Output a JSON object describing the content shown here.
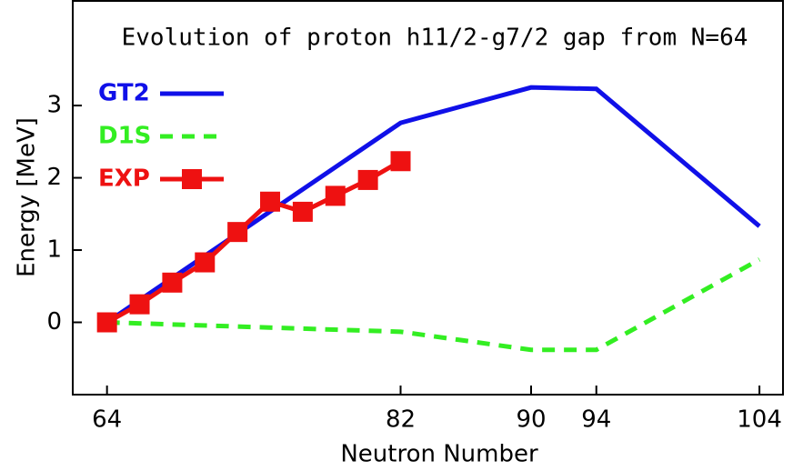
{
  "chart_data": {
    "type": "line",
    "title": "Evolution of proton h11/2-g7/2 gap from N=64",
    "xlabel": "Neutron Number",
    "ylabel": "Energy [MeV]",
    "xlim": [
      61.9,
      105.5
    ],
    "xticks": [
      64,
      82,
      90,
      94,
      104
    ],
    "ylim": [
      -1,
      4.46
    ],
    "yticks": [
      0,
      1,
      2,
      3
    ],
    "legend": "upper left",
    "series": [
      {
        "name": "GT2",
        "color": "#1010e8",
        "style": "solid",
        "marker": "none",
        "x": [
          64,
          82,
          90,
          94,
          104
        ],
        "values": [
          0,
          2.76,
          3.25,
          3.23,
          1.33
        ]
      },
      {
        "name": "D1S",
        "color": "#33ee22",
        "style": "dashed",
        "marker": "none",
        "x": [
          64,
          82,
          90,
          94,
          104
        ],
        "values": [
          0,
          -0.13,
          -0.38,
          -0.38,
          0.87
        ]
      },
      {
        "name": "EXP",
        "color": "#ee1111",
        "style": "solid",
        "marker": "square",
        "x": [
          64,
          66,
          68,
          70,
          72,
          74,
          76,
          78,
          80,
          82
        ],
        "values": [
          0,
          0.25,
          0.55,
          0.83,
          1.25,
          1.67,
          1.53,
          1.75,
          1.97,
          2.23
        ]
      }
    ]
  }
}
